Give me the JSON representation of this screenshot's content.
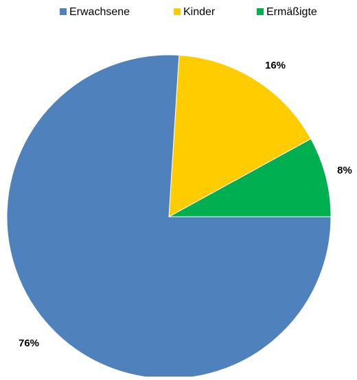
{
  "chart_data": {
    "type": "pie",
    "title": "",
    "series": [
      {
        "values": [
          76,
          16,
          8
        ]
      }
    ],
    "categories": [
      "Erwachsene",
      "Kinder",
      "Ermäßigte"
    ],
    "values": [
      76,
      16,
      8
    ],
    "colors": [
      "#4F81BD",
      "#FFCC00",
      "#00B050"
    ],
    "data_labels": [
      "76%",
      "16%",
      "8%"
    ],
    "start_angle_deg": -90,
    "direction": "counterclockwise",
    "legend_position": "top"
  }
}
